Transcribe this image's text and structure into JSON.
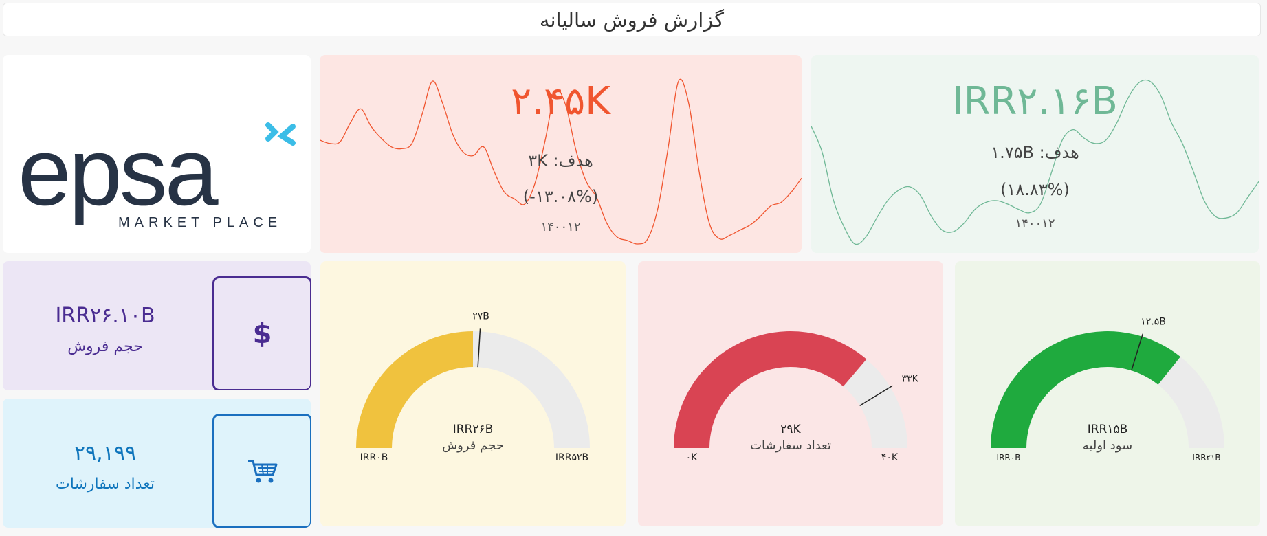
{
  "header": {
    "title": "گزارش فروش سالیانه"
  },
  "logo": {
    "wordmark": "epsa",
    "tagline": "MARKET PLACE"
  },
  "kpi_count": {
    "value": "۲.۴۵K",
    "goal": "هدف: ۳K",
    "change": "(-۱۳.۰۸%)",
    "period": "۱۴۰۰۱۲",
    "color": "#f0552f",
    "fill": "#fde6e3",
    "sparkline": [
      0.62,
      0.6,
      0.61,
      0.72,
      0.8,
      0.7,
      0.63,
      0.58,
      0.57,
      0.6,
      0.77,
      0.96,
      0.83,
      0.65,
      0.55,
      0.53,
      0.58,
      0.44,
      0.32,
      0.28,
      0.25,
      0.37,
      0.62,
      0.9,
      0.82,
      0.56,
      0.38,
      0.29,
      0.14,
      0.06,
      0.04,
      0.02,
      0.05,
      0.23,
      0.58,
      0.96,
      0.83,
      0.44,
      0.14,
      0.05,
      0.07,
      0.1,
      0.13,
      0.18,
      0.24,
      0.26,
      0.32,
      0.4
    ]
  },
  "kpi_revenue": {
    "value": "IRR۲.۱۶B",
    "goal": "هدف: ۱.۷۵B",
    "change": "(۱۸.۸۳%)",
    "period": "۱۴۰۰۱۲",
    "color": "#6fb896",
    "fill": "#eef6f1",
    "sparkline": [
      0.7,
      0.55,
      0.28,
      0.12,
      0.02,
      0.06,
      0.17,
      0.27,
      0.33,
      0.35,
      0.3,
      0.18,
      0.1,
      0.09,
      0.14,
      0.22,
      0.26,
      0.27,
      0.25,
      0.22,
      0.2,
      0.25,
      0.43,
      0.62,
      0.68,
      0.63,
      0.6,
      0.62,
      0.72,
      0.86,
      0.95,
      0.96,
      0.88,
      0.72,
      0.6,
      0.44,
      0.27,
      0.18,
      0.17,
      0.2,
      0.29,
      0.38
    ]
  },
  "stats": {
    "volume": {
      "value": "IRR۲۶.۱۰B",
      "label": "حجم فروش",
      "icon": "dollar-icon",
      "icon_glyph": "$"
    },
    "orders": {
      "value": "۲۹,۱۹۹",
      "label": "تعداد سفارشات",
      "icon": "cart-icon"
    }
  },
  "gauges": [
    {
      "id": "volume",
      "value": 26,
      "min": 0,
      "max": 52,
      "target": 27,
      "value_label": "IRR۲۶B",
      "label": "حجم فروش",
      "min_label": "IRR۰B",
      "max_label": "IRR۵۲B",
      "target_label": "۲۷B",
      "color": "#f0c23e",
      "track": "#ebebeb"
    },
    {
      "id": "orders",
      "value": 29,
      "min": 0,
      "max": 40,
      "target": 33,
      "value_label": "۲۹K",
      "label": "تعداد سفارشات",
      "min_label": "۰K",
      "max_label": "۴۰K",
      "target_label": "۳۳K",
      "color": "#d94453",
      "track": "#ebebeb"
    },
    {
      "id": "profit",
      "value": 15,
      "min": 0,
      "max": 21,
      "target": 12.5,
      "value_label": "IRR۱۵B",
      "label": "سود اولیه",
      "min_label": "IRR۰B",
      "max_label": "IRR۲۱B",
      "target_label": "۱۲.۵B",
      "color": "#1faa3e",
      "track": "#ebebeb"
    }
  ]
}
